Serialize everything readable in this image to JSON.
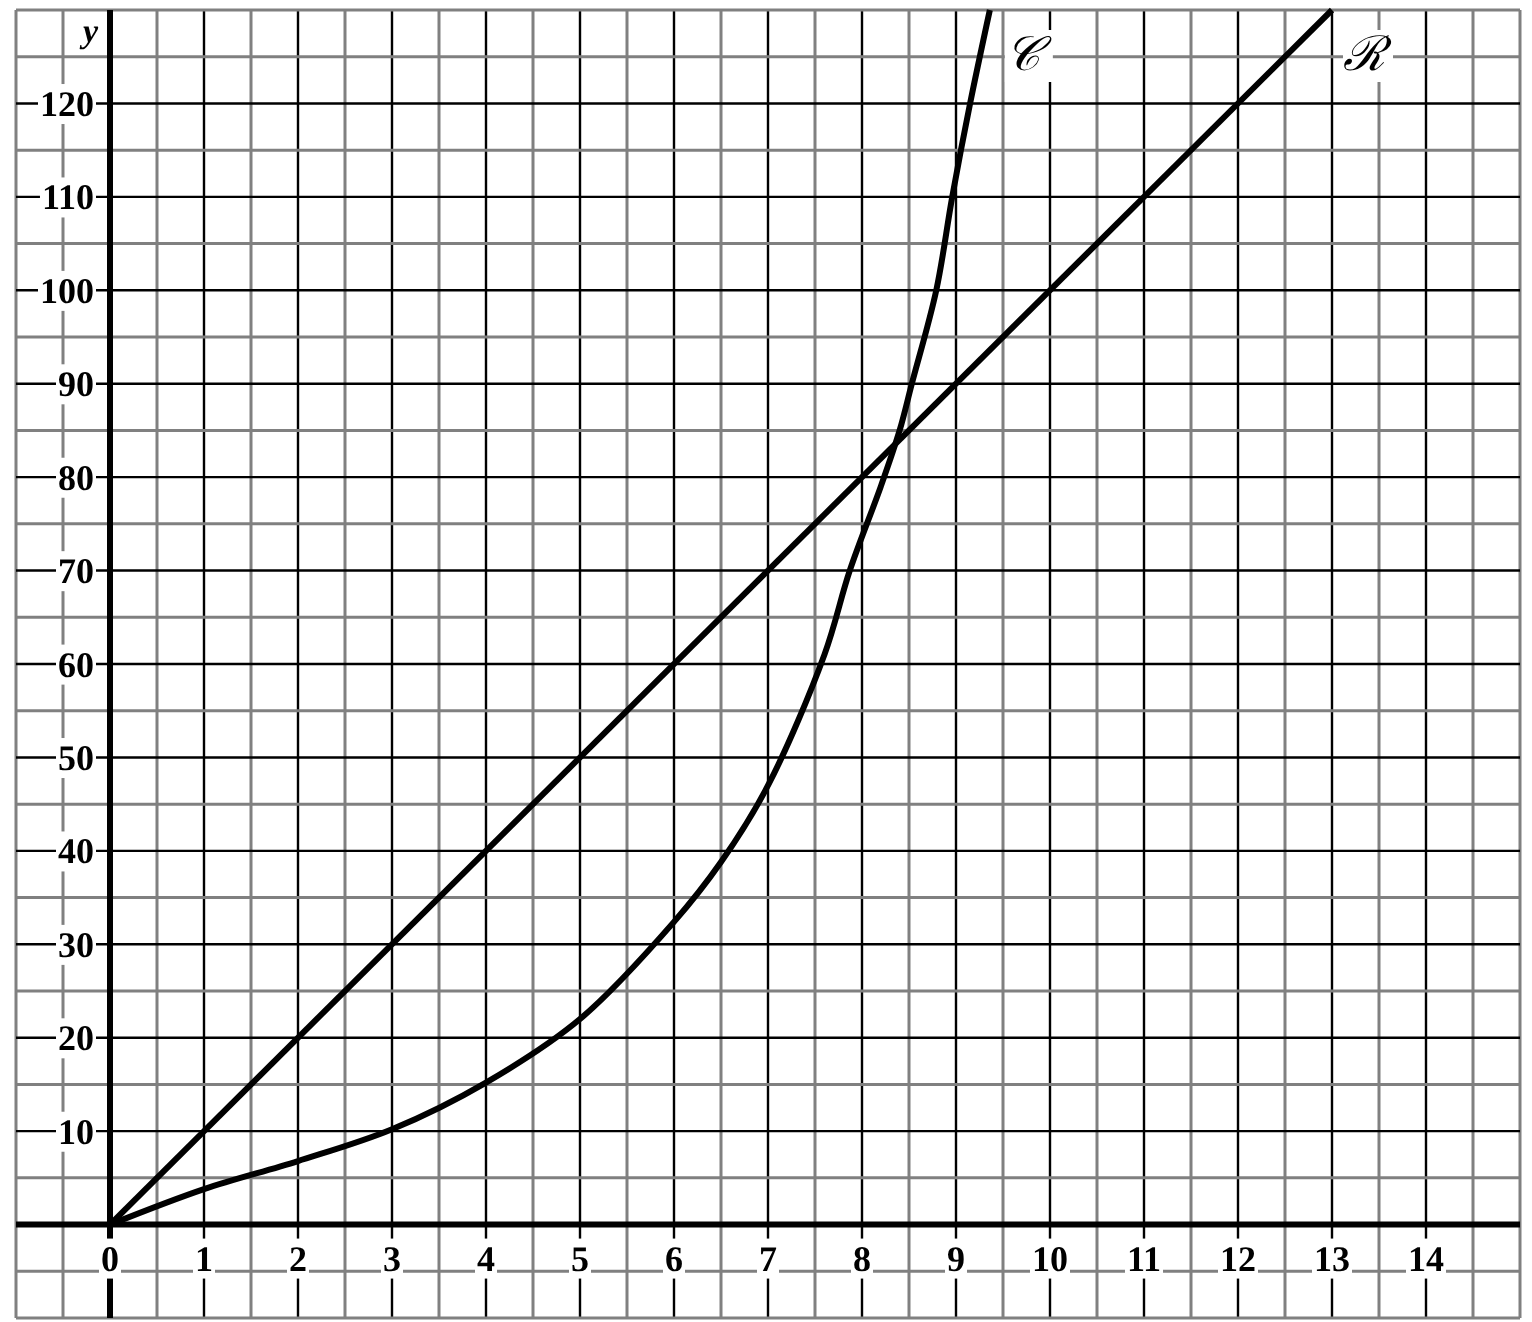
{
  "chart_data": {
    "type": "line",
    "ylabel": "y",
    "grid": true,
    "xlim": [
      -1,
      15
    ],
    "ylim": [
      -10,
      130
    ],
    "xticks": [
      {
        "value": -1,
        "label": null
      },
      {
        "value": -0.5,
        "label": null
      },
      0,
      {
        "value": 0.5,
        "label": null
      },
      1,
      {
        "value": 1.5,
        "label": null
      },
      2,
      {
        "value": 2.5,
        "label": null
      },
      3,
      {
        "value": 3.5,
        "label": null
      },
      4,
      {
        "value": 4.5,
        "label": null
      },
      5,
      {
        "value": 5.5,
        "label": null
      },
      6,
      {
        "value": 6.5,
        "label": null
      },
      7,
      {
        "value": 7.5,
        "label": null
      },
      8,
      {
        "value": 8.5,
        "label": null
      },
      9,
      {
        "value": 9.5,
        "label": null
      },
      10,
      {
        "value": 10.5,
        "label": null
      },
      11,
      {
        "value": 11.5,
        "label": null
      },
      12,
      {
        "value": 12.5,
        "label": null
      },
      13,
      {
        "value": 13.5,
        "label": null
      },
      14,
      {
        "value": 14.5,
        "label": null
      },
      {
        "value": 15,
        "label": null
      }
    ],
    "yticks": [
      {
        "value": -10,
        "label": null
      },
      {
        "value": -5,
        "label": null
      },
      {
        "value": 0,
        "label": null
      },
      {
        "value": 5,
        "label": null
      },
      10,
      {
        "value": 15,
        "label": null
      },
      20,
      {
        "value": 25,
        "label": null
      },
      30,
      {
        "value": 35,
        "label": null
      },
      40,
      {
        "value": 45,
        "label": null
      },
      50,
      {
        "value": 55,
        "label": null
      },
      60,
      {
        "value": 65,
        "label": null
      },
      70,
      {
        "value": 75,
        "label": null
      },
      80,
      {
        "value": 85,
        "label": null
      },
      90,
      {
        "value": 95,
        "label": null
      },
      100,
      {
        "value": 105,
        "label": null
      },
      110,
      {
        "value": 115,
        "label": null
      },
      120,
      {
        "value": 125,
        "label": null
      },
      {
        "value": 130,
        "label": null
      }
    ],
    "series": [
      {
        "name": "ℛ",
        "color": "#000000",
        "x": [
          0,
          13
        ],
        "values": [
          0,
          130
        ]
      },
      {
        "name": "𝒞",
        "color": "#000000",
        "x": [
          0,
          1,
          2,
          3,
          4,
          5,
          6,
          6.5,
          7,
          7.6,
          7.87,
          8.2,
          8.4,
          8.53,
          8.79,
          8.96,
          9.15,
          9.36
        ],
        "values": [
          0,
          3.8,
          6.8,
          10.2,
          15.2,
          22,
          32.4,
          38.8,
          47,
          61,
          70,
          79,
          85,
          90,
          100,
          110,
          120,
          130
        ]
      }
    ]
  }
}
